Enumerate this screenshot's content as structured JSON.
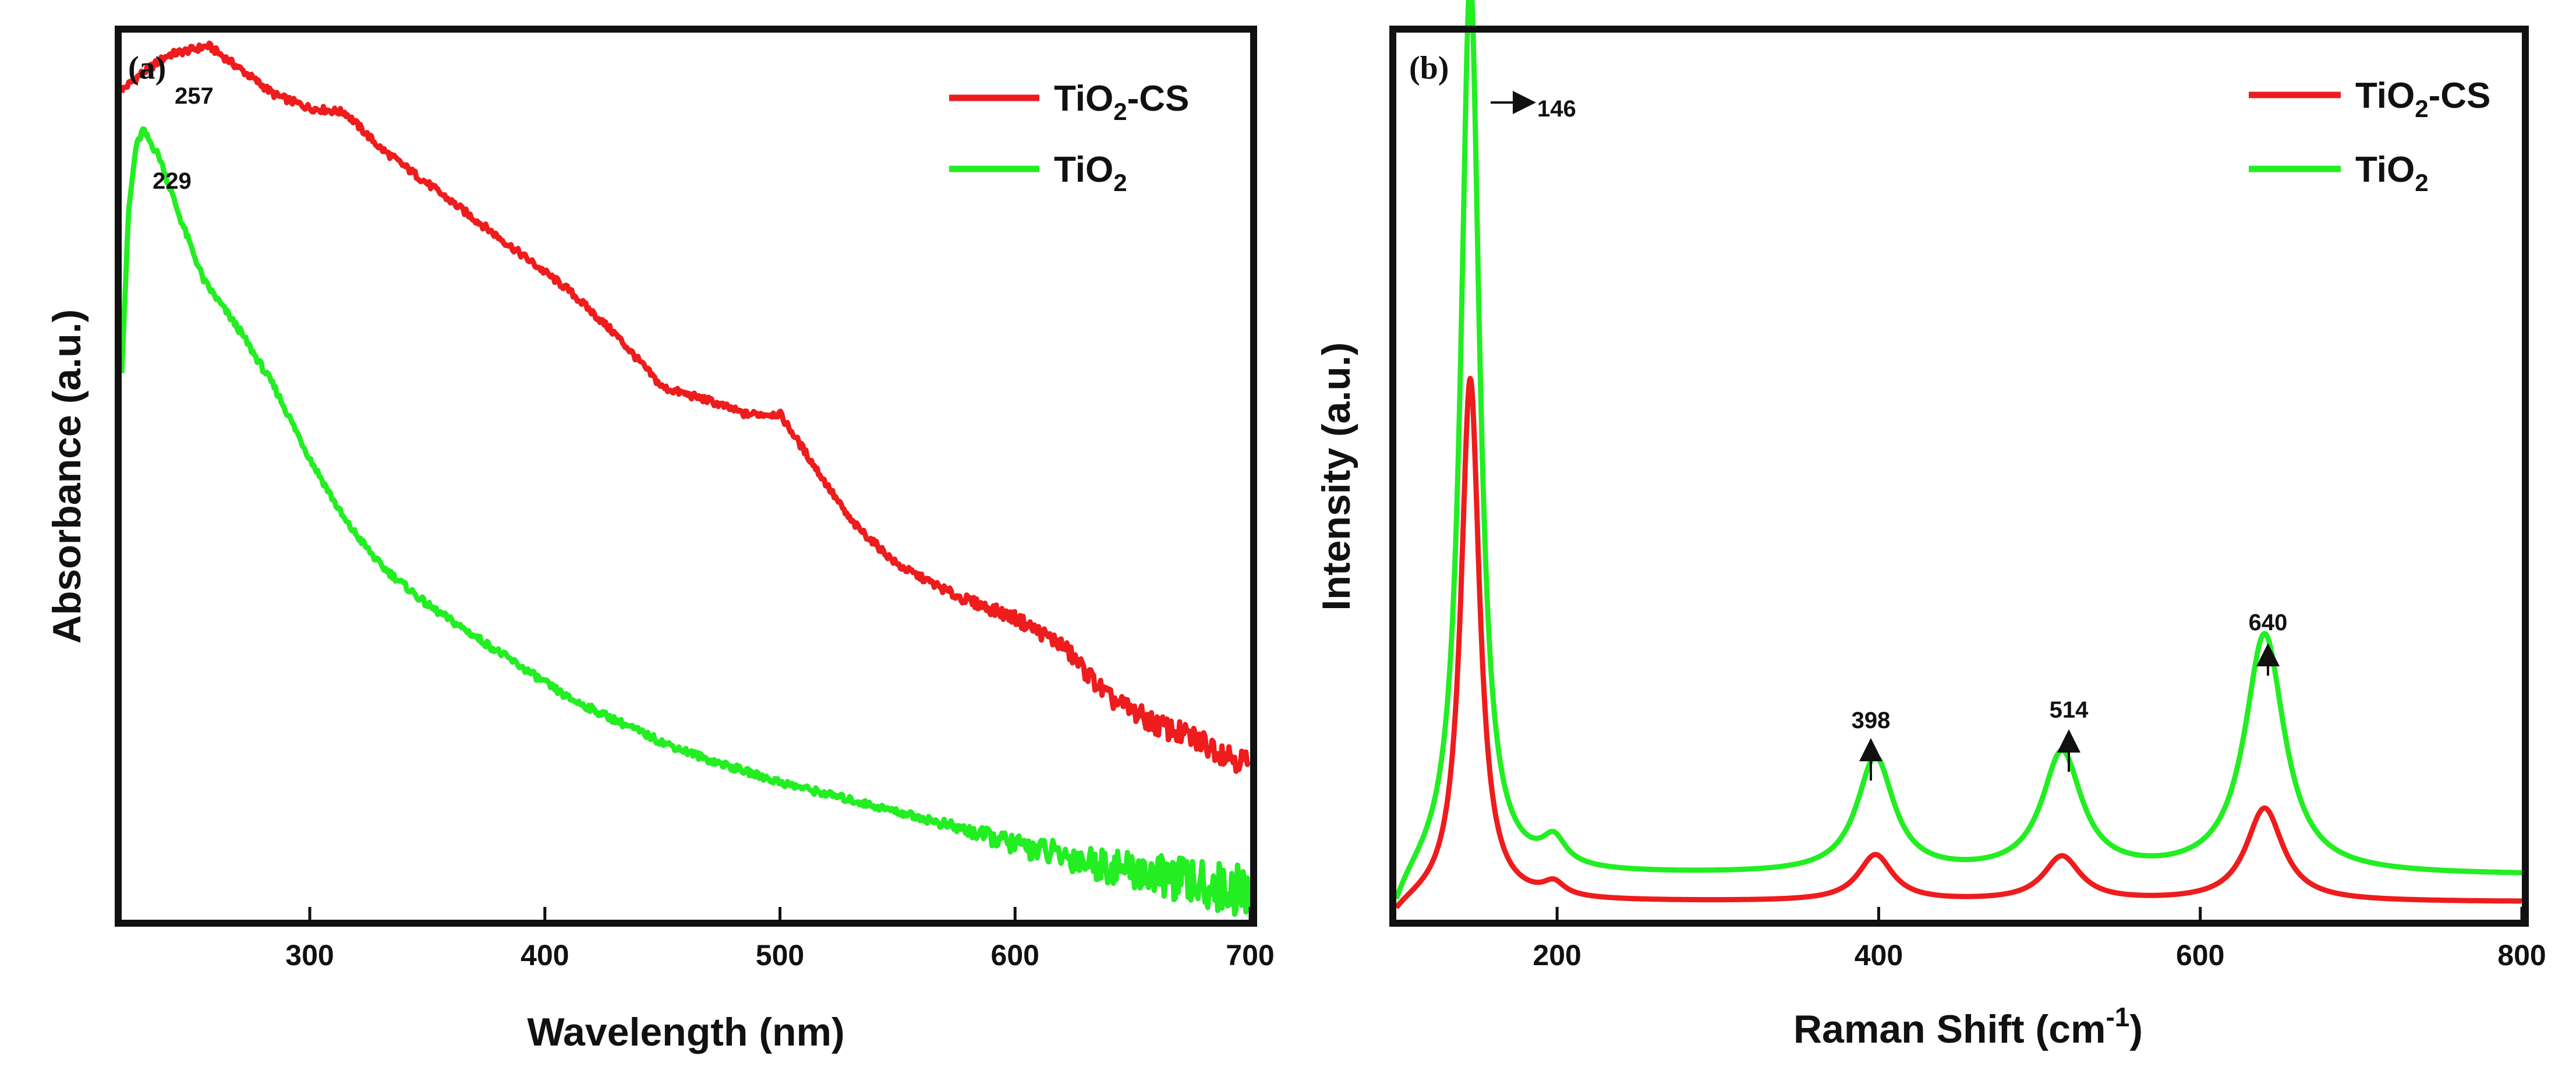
{
  "colors": {
    "tio2_cs": "#ee1c1c",
    "tio2": "#22ee22",
    "axis": "#111111"
  },
  "chart_data": [
    {
      "type": "line",
      "panel_label": "(a)",
      "xlabel": "Wavelength (nm)",
      "ylabel": "Absorbance (a.u.)",
      "xlim": [
        220,
        700
      ],
      "ylim": [
        0,
        1.0
      ],
      "xticks": [
        300,
        400,
        500,
        600,
        700
      ],
      "x_tick_labels": [
        "300",
        "400",
        "500",
        "600",
        "700"
      ],
      "legend": {
        "position": "top-right",
        "entries": [
          {
            "main": "TiO",
            "sub": "2",
            "suffix": "-CS"
          },
          {
            "main": "TiO",
            "sub": "2",
            "suffix": ""
          }
        ]
      },
      "series": [
        {
          "name": "TiO2-CS",
          "x": [
            220,
            229,
            240,
            257,
            270,
            285,
            300,
            315,
            330,
            350,
            370,
            390,
            410,
            430,
            450,
            470,
            485,
            500,
            515,
            530,
            550,
            575,
            600,
            620,
            640,
            660,
            680,
            700
          ],
          "y": [
            0.935,
            0.955,
            0.975,
            0.985,
            0.96,
            0.93,
            0.915,
            0.91,
            0.87,
            0.83,
            0.79,
            0.75,
            0.71,
            0.66,
            0.6,
            0.585,
            0.57,
            0.57,
            0.51,
            0.45,
            0.4,
            0.365,
            0.34,
            0.31,
            0.25,
            0.22,
            0.2,
            0.175
          ]
        },
        {
          "name": "TiO2",
          "x": [
            220,
            223,
            226,
            229,
            236,
            245,
            255,
            270,
            285,
            300,
            315,
            330,
            350,
            370,
            390,
            410,
            430,
            450,
            470,
            500,
            530,
            560,
            600,
            640,
            670,
            700
          ],
          "y": [
            0.62,
            0.8,
            0.87,
            0.89,
            0.86,
            0.79,
            0.72,
            0.665,
            0.6,
            0.52,
            0.45,
            0.4,
            0.355,
            0.32,
            0.285,
            0.25,
            0.225,
            0.2,
            0.18,
            0.155,
            0.135,
            0.115,
            0.085,
            0.06,
            0.045,
            0.03
          ]
        }
      ],
      "annotations": [
        {
          "text": "257",
          "x": 257,
          "y": 0.985
        },
        {
          "text": "229",
          "x": 229,
          "y": 0.89
        }
      ]
    },
    {
      "type": "line",
      "panel_label": "(b)",
      "xlabel": "Raman Shift (cm",
      "xlabel_sup": "-1",
      "xlabel_close": ")",
      "ylabel": "Intensity (a.u.)",
      "xlim": [
        100,
        800
      ],
      "ylim": [
        0,
        1.0
      ],
      "xticks": [
        200,
        400,
        600,
        800
      ],
      "x_tick_labels": [
        "200",
        "400",
        "600",
        "800"
      ],
      "legend": {
        "position": "top-right",
        "entries": [
          {
            "main": "TiO",
            "sub": "2",
            "suffix": "-CS"
          },
          {
            "main": "TiO",
            "sub": "2",
            "suffix": ""
          }
        ]
      },
      "series": [
        {
          "name": "TiO2-CS",
          "peaks": [
            {
              "center": 146,
              "height": 0.59,
              "width": 7
            },
            {
              "center": 198,
              "height": 0.015,
              "width": 8
            },
            {
              "center": 398,
              "height": 0.052,
              "width": 13
            },
            {
              "center": 514,
              "height": 0.05,
              "width": 14
            },
            {
              "center": 640,
              "height": 0.105,
              "width": 14
            }
          ],
          "baseline": 0.02
        },
        {
          "name": "TiO2",
          "peaks": [
            {
              "center": 146,
              "height": 1.01,
              "width": 7
            },
            {
              "center": 198,
              "height": 0.03,
              "width": 9
            },
            {
              "center": 398,
              "height": 0.13,
              "width": 14
            },
            {
              "center": 514,
              "height": 0.135,
              "width": 15
            },
            {
              "center": 640,
              "height": 0.27,
              "width": 15
            }
          ],
          "baseline": 0.05
        }
      ],
      "annotations": [
        {
          "text": "146",
          "x": 146,
          "y": 1.0
        },
        {
          "text": "398",
          "x": 398,
          "y": 0.16
        },
        {
          "text": "514",
          "x": 514,
          "y": 0.16
        },
        {
          "text": "640",
          "x": 640,
          "y": 0.3
        }
      ]
    }
  ]
}
